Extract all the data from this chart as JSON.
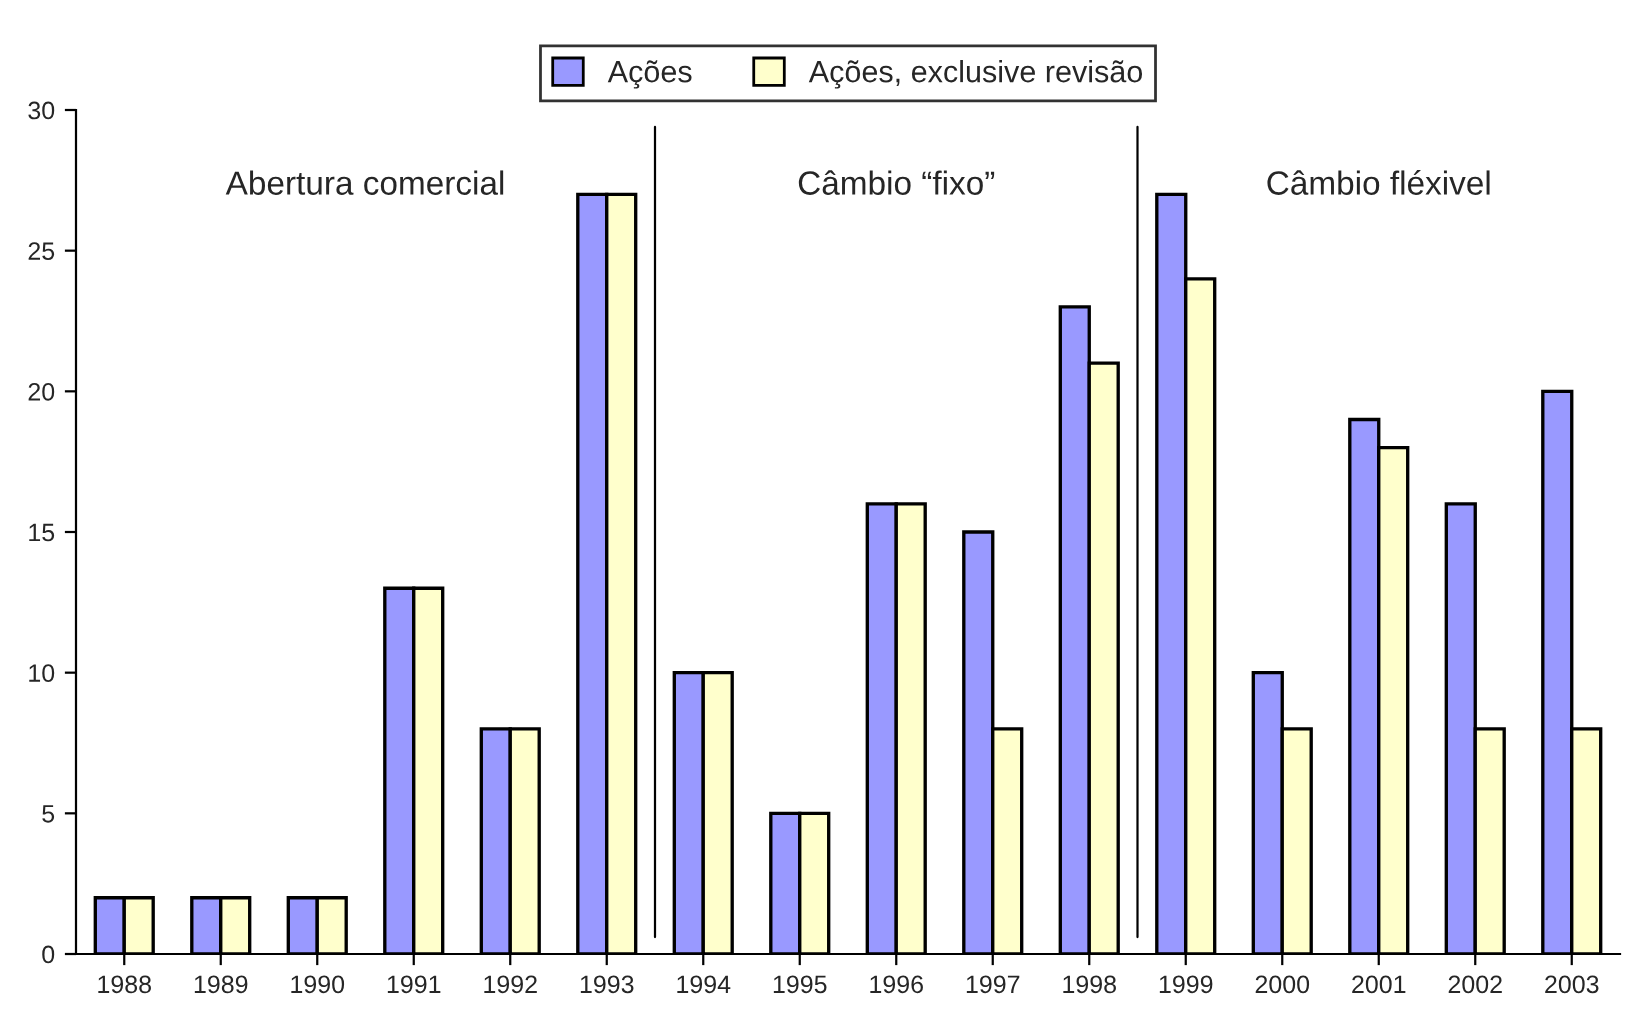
{
  "chart_data": {
    "type": "bar",
    "categories": [
      "1988",
      "1989",
      "1990",
      "1991",
      "1992",
      "1993",
      "1994",
      "1995",
      "1996",
      "1997",
      "1998",
      "1999",
      "2000",
      "2001",
      "2002",
      "2003"
    ],
    "series": [
      {
        "name": "Ações",
        "color": "#9999ff",
        "values": [
          2,
          2,
          2,
          13,
          8,
          27,
          10,
          5,
          16,
          15,
          23,
          27,
          10,
          19,
          16,
          20
        ]
      },
      {
        "name": "Ações, exclusive revisão",
        "color": "#ffffcc",
        "values": [
          2,
          2,
          2,
          13,
          8,
          27,
          10,
          5,
          16,
          8,
          21,
          24,
          8,
          18,
          8,
          8
        ]
      }
    ],
    "ylim": [
      0,
      30
    ],
    "yticks": [
      0,
      5,
      10,
      15,
      20,
      25,
      30
    ],
    "annotations": [
      "Abertura comercial",
      "Câmbio “fixo”",
      "Câmbio fléxivel"
    ],
    "grid": false,
    "legend": "top"
  }
}
